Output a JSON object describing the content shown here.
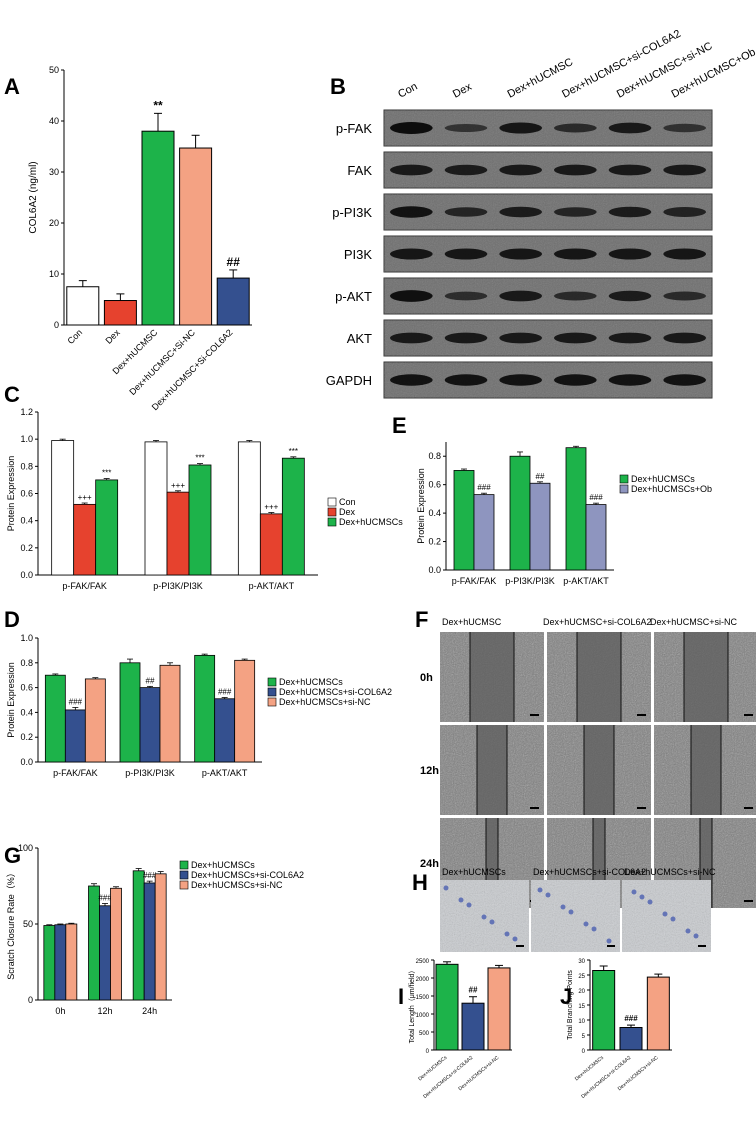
{
  "panel_labels": [
    "A",
    "B",
    "C",
    "D",
    "E",
    "F",
    "G",
    "H",
    "I",
    "J"
  ],
  "colors": {
    "white": "#ffffff",
    "red": "#e6422e",
    "green": "#1db34a",
    "salmon": "#f4a283",
    "navy": "#34508f",
    "lavender": "#8e95bf",
    "axis": "#000000"
  },
  "chart_data": [
    {
      "id": "A",
      "type": "bar",
      "ylabel": "COL6A2 (ng/ml)",
      "ylim": [
        0,
        50
      ],
      "yticks": [
        0,
        10,
        20,
        30,
        40,
        50
      ],
      "categories": [
        "Con",
        "Dex",
        "Dex+hUCMSC",
        "Dex+hUCMSC+Si-NC",
        "Dex+hUCMSC+Si-COL6A2"
      ],
      "values": [
        7.5,
        4.8,
        38,
        34.7,
        9.2
      ],
      "errors": [
        1.2,
        1.3,
        3.5,
        2.5,
        1.6
      ],
      "colors": [
        "#ffffff",
        "#e6422e",
        "#1db34a",
        "#f4a283",
        "#34508f"
      ],
      "annotations": [
        "",
        "",
        "**",
        "",
        "##"
      ]
    },
    {
      "id": "B",
      "type": "blot",
      "lanes": [
        "Con",
        "Dex",
        "Dex+hUCMSC",
        "Dex+hUCMSC+si-COL6A2",
        "Dex+hUCMSC+si-NC",
        "Dex+hUCMSC+Ob"
      ],
      "rows": [
        {
          "label": "p-FAK",
          "intensity": [
            1.0,
            0.35,
            0.85,
            0.5,
            0.8,
            0.4
          ]
        },
        {
          "label": "FAK",
          "intensity": [
            0.8,
            0.75,
            0.8,
            0.8,
            0.8,
            0.8
          ]
        },
        {
          "label": "p-PI3K",
          "intensity": [
            0.9,
            0.6,
            0.75,
            0.6,
            0.75,
            0.65
          ]
        },
        {
          "label": "PI3K",
          "intensity": [
            0.85,
            0.85,
            0.85,
            0.85,
            0.85,
            0.85
          ]
        },
        {
          "label": "p-AKT",
          "intensity": [
            0.95,
            0.45,
            0.8,
            0.5,
            0.75,
            0.5
          ]
        },
        {
          "label": "AKT",
          "intensity": [
            0.8,
            0.8,
            0.8,
            0.8,
            0.8,
            0.8
          ]
        },
        {
          "label": "GAPDH",
          "intensity": [
            0.9,
            0.9,
            0.9,
            0.9,
            0.9,
            0.9
          ]
        }
      ]
    },
    {
      "id": "C",
      "type": "bar",
      "ylabel": "Protein Expression",
      "ylim": [
        0,
        1.2
      ],
      "yticks": [
        "0.0",
        "0.2",
        "0.4",
        "0.6",
        "0.8",
        "1.0",
        "1.2"
      ],
      "categories": [
        "p-FAK/FAK",
        "p-PI3K/PI3K",
        "p-AKT/AKT"
      ],
      "series": [
        {
          "name": "Con",
          "values": [
            0.99,
            0.98,
            0.98
          ],
          "errors": [
            0.01,
            0.01,
            0.01
          ],
          "color": "#ffffff",
          "annotations": [
            "",
            "",
            ""
          ]
        },
        {
          "name": "Dex",
          "values": [
            0.52,
            0.61,
            0.45
          ],
          "errors": [
            0.01,
            0.01,
            0.01
          ],
          "color": "#e6422e",
          "annotations": [
            "+++",
            "+++",
            "+++"
          ]
        },
        {
          "name": "Dex+hUCMSCs",
          "values": [
            0.7,
            0.81,
            0.86
          ],
          "errors": [
            0.01,
            0.01,
            0.01
          ],
          "color": "#1db34a",
          "annotations": [
            "***",
            "***",
            "***"
          ]
        }
      ],
      "legend_position": "right"
    },
    {
      "id": "D",
      "type": "bar",
      "ylabel": "Protein Expression",
      "ylim": [
        0,
        1.0
      ],
      "yticks": [
        "0.0",
        "0.2",
        "0.4",
        "0.6",
        "0.8",
        "1.0"
      ],
      "categories": [
        "p-FAK/FAK",
        "p-PI3K/PI3K",
        "p-AKT/AKT"
      ],
      "series": [
        {
          "name": "Dex+hUCMSCs",
          "values": [
            0.7,
            0.8,
            0.86
          ],
          "errors": [
            0.01,
            0.03,
            0.01
          ],
          "color": "#1db34a",
          "annotations": [
            "",
            "",
            ""
          ]
        },
        {
          "name": "Dex+hUCMSCs+si-COL6A2",
          "values": [
            0.42,
            0.6,
            0.51
          ],
          "errors": [
            0.02,
            0.01,
            0.01
          ],
          "color": "#34508f",
          "annotations": [
            "###",
            "##",
            "###"
          ]
        },
        {
          "name": "Dex+hUCMSCs+si-NC",
          "values": [
            0.67,
            0.78,
            0.82
          ],
          "errors": [
            0.01,
            0.02,
            0.01
          ],
          "color": "#f4a283",
          "annotations": [
            "",
            "",
            ""
          ]
        }
      ],
      "legend_position": "right"
    },
    {
      "id": "E",
      "type": "bar",
      "ylabel": "Protein Expression",
      "ylim": [
        0,
        0.9
      ],
      "yticks": [
        "0.0",
        "0.2",
        "0.4",
        "0.6",
        "0.8"
      ],
      "categories": [
        "p-FAK/FAK",
        "p-PI3K/PI3K",
        "p-AKT/AKT"
      ],
      "series": [
        {
          "name": "Dex+hUCMSCs",
          "values": [
            0.7,
            0.8,
            0.86
          ],
          "errors": [
            0.01,
            0.03,
            0.01
          ],
          "color": "#1db34a",
          "annotations": [
            "",
            "",
            ""
          ]
        },
        {
          "name": "Dex+hUCMSCs+Ob",
          "values": [
            0.53,
            0.61,
            0.46
          ],
          "errors": [
            0.01,
            0.01,
            0.01
          ],
          "color": "#8e95bf",
          "annotations": [
            "###",
            "##",
            "###"
          ]
        }
      ],
      "legend_position": "right"
    },
    {
      "id": "G",
      "type": "bar",
      "ylabel": "Scratch Closure Rate（%）",
      "ylim": [
        0,
        100
      ],
      "yticks": [
        "0",
        "50",
        "100"
      ],
      "categories": [
        "0h",
        "12h",
        "24h"
      ],
      "series": [
        {
          "name": "Dex+hUCMSCs",
          "values": [
            49,
            75,
            85
          ],
          "errors": [
            0.5,
            1.5,
            1.5
          ],
          "color": "#1db34a",
          "annotations": [
            "",
            "",
            ""
          ]
        },
        {
          "name": "Dex+hUCMSCs+si-COL6A2",
          "values": [
            49.5,
            62,
            77
          ],
          "errors": [
            0.5,
            1.5,
            1.2
          ],
          "color": "#34508f",
          "annotations": [
            "",
            "###",
            "###"
          ]
        },
        {
          "name": "Dex+hUCMSCs+si-NC",
          "values": [
            50,
            73.5,
            83
          ],
          "errors": [
            0.5,
            1,
            1.5
          ],
          "color": "#f4a283",
          "annotations": [
            "",
            "",
            ""
          ]
        }
      ],
      "legend_position": "right"
    },
    {
      "id": "I",
      "type": "bar",
      "ylabel": "Total Length（μm/field）",
      "ylim": [
        0,
        2500
      ],
      "yticks": [
        "0",
        "500",
        "1000",
        "1500",
        "2000",
        "2500"
      ],
      "categories": [
        "Dex+hUCMSCs",
        "Dex+hUCMSCs+si-COL6A2",
        "Dex+hUCMSCs+si-NC"
      ],
      "values": [
        2380,
        1300,
        2280
      ],
      "errors": [
        70,
        180,
        70
      ],
      "colors": [
        "#1db34a",
        "#34508f",
        "#f4a283"
      ],
      "annotations": [
        "",
        "##",
        ""
      ]
    },
    {
      "id": "J",
      "type": "bar",
      "ylabel": "Total Branching Points",
      "ylim": [
        0,
        30
      ],
      "yticks": [
        "0",
        "5",
        "10",
        "15",
        "20",
        "25",
        "30"
      ],
      "categories": [
        "Dex+hUCMSCs",
        "Dex+hUCMSCs+si-COL6A2",
        "Dex+hUCMSCs+si-NC"
      ],
      "values": [
        26.5,
        7.5,
        24.3
      ],
      "errors": [
        1.5,
        0.8,
        1.0
      ],
      "colors": [
        "#1db34a",
        "#34508f",
        "#f4a283"
      ],
      "annotations": [
        "",
        "###",
        ""
      ]
    }
  ],
  "micrographs": {
    "F": {
      "columns": [
        "Dex+hUCMSC",
        "Dex+hUCMSC+si-COL6A2",
        "Dex+hUCMSC+si-NC"
      ],
      "rows": [
        "0h",
        "12h",
        "24h"
      ]
    },
    "H": {
      "columns": [
        "Dex+hUCMSCs",
        "Dex+hUCMSCs+si-COL6A2",
        "Dex+hUCMSCs+si-NC"
      ]
    }
  }
}
